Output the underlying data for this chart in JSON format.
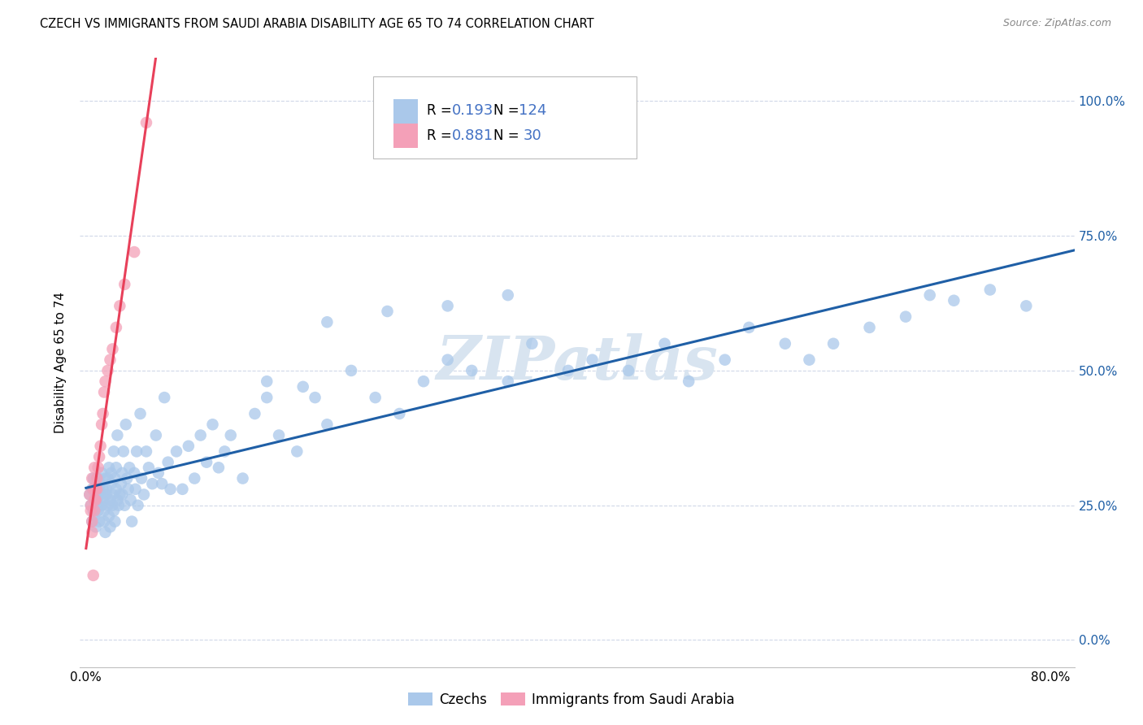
{
  "title": "CZECH VS IMMIGRANTS FROM SAUDI ARABIA DISABILITY AGE 65 TO 74 CORRELATION CHART",
  "source": "Source: ZipAtlas.com",
  "ylabel": "Disability Age 65 to 74",
  "xlim": [
    -0.005,
    0.82
  ],
  "ylim": [
    -0.05,
    1.08
  ],
  "x_ticks": [
    0.0,
    0.1,
    0.2,
    0.3,
    0.4,
    0.5,
    0.6,
    0.7,
    0.8
  ],
  "x_tick_labels": [
    "0.0%",
    "",
    "",
    "",
    "",
    "",
    "",
    "",
    "80.0%"
  ],
  "y_ticks_right": [
    0.0,
    0.25,
    0.5,
    0.75,
    1.0
  ],
  "y_tick_labels_right": [
    "0.0%",
    "25.0%",
    "50.0%",
    "75.0%",
    "100.0%"
  ],
  "czechs_R": 0.193,
  "czechs_N": 124,
  "saudi_R": 0.881,
  "saudi_N": 30,
  "blue_color": "#aac8ea",
  "pink_color": "#f4a0b8",
  "blue_line_color": "#1f5fa6",
  "pink_line_color": "#e8405a",
  "legend_R_color": "#4472c4",
  "background_color": "#ffffff",
  "grid_color": "#d0d8e8",
  "watermark_text": "ZIPatlas",
  "watermark_color": "#d8e4f0",
  "czechs_x": [
    0.003,
    0.004,
    0.005,
    0.005,
    0.006,
    0.006,
    0.007,
    0.007,
    0.008,
    0.008,
    0.009,
    0.009,
    0.01,
    0.01,
    0.01,
    0.01,
    0.011,
    0.011,
    0.012,
    0.012,
    0.013,
    0.013,
    0.014,
    0.014,
    0.015,
    0.015,
    0.016,
    0.016,
    0.017,
    0.017,
    0.018,
    0.018,
    0.019,
    0.019,
    0.02,
    0.02,
    0.021,
    0.021,
    0.022,
    0.022,
    0.023,
    0.023,
    0.024,
    0.024,
    0.025,
    0.025,
    0.026,
    0.026,
    0.027,
    0.028,
    0.029,
    0.03,
    0.03,
    0.031,
    0.032,
    0.033,
    0.034,
    0.035,
    0.036,
    0.037,
    0.038,
    0.04,
    0.041,
    0.042,
    0.043,
    0.045,
    0.046,
    0.048,
    0.05,
    0.052,
    0.055,
    0.058,
    0.06,
    0.063,
    0.065,
    0.068,
    0.07,
    0.075,
    0.08,
    0.085,
    0.09,
    0.095,
    0.1,
    0.105,
    0.11,
    0.115,
    0.12,
    0.13,
    0.14,
    0.15,
    0.16,
    0.175,
    0.19,
    0.2,
    0.22,
    0.24,
    0.26,
    0.28,
    0.3,
    0.32,
    0.35,
    0.37,
    0.4,
    0.42,
    0.45,
    0.48,
    0.5,
    0.53,
    0.55,
    0.58,
    0.6,
    0.62,
    0.65,
    0.68,
    0.7,
    0.72,
    0.75,
    0.78,
    0.2,
    0.25,
    0.15,
    0.18,
    0.3,
    0.35
  ],
  "czechs_y": [
    0.27,
    0.25,
    0.28,
    0.22,
    0.24,
    0.3,
    0.26,
    0.23,
    0.21,
    0.27,
    0.28,
    0.26,
    0.24,
    0.3,
    0.27,
    0.25,
    0.22,
    0.28,
    0.29,
    0.27,
    0.25,
    0.31,
    0.28,
    0.26,
    0.24,
    0.22,
    0.3,
    0.2,
    0.28,
    0.27,
    0.3,
    0.25,
    0.32,
    0.23,
    0.26,
    0.21,
    0.29,
    0.31,
    0.27,
    0.25,
    0.35,
    0.24,
    0.22,
    0.3,
    0.28,
    0.32,
    0.26,
    0.38,
    0.25,
    0.27,
    0.29,
    0.31,
    0.27,
    0.35,
    0.25,
    0.4,
    0.3,
    0.28,
    0.32,
    0.26,
    0.22,
    0.31,
    0.28,
    0.35,
    0.25,
    0.42,
    0.3,
    0.27,
    0.35,
    0.32,
    0.29,
    0.38,
    0.31,
    0.29,
    0.45,
    0.33,
    0.28,
    0.35,
    0.28,
    0.36,
    0.3,
    0.38,
    0.33,
    0.4,
    0.32,
    0.35,
    0.38,
    0.3,
    0.42,
    0.48,
    0.38,
    0.35,
    0.45,
    0.4,
    0.5,
    0.45,
    0.42,
    0.48,
    0.52,
    0.5,
    0.48,
    0.55,
    0.5,
    0.52,
    0.5,
    0.55,
    0.48,
    0.52,
    0.58,
    0.55,
    0.52,
    0.55,
    0.58,
    0.6,
    0.64,
    0.63,
    0.65,
    0.62,
    0.59,
    0.61,
    0.45,
    0.47,
    0.62,
    0.64
  ],
  "saudi_x": [
    0.003,
    0.004,
    0.004,
    0.005,
    0.005,
    0.005,
    0.006,
    0.006,
    0.007,
    0.007,
    0.007,
    0.008,
    0.008,
    0.009,
    0.009,
    0.01,
    0.011,
    0.012,
    0.013,
    0.014,
    0.015,
    0.016,
    0.018,
    0.02,
    0.022,
    0.025,
    0.028,
    0.032,
    0.04,
    0.05
  ],
  "saudi_y": [
    0.27,
    0.25,
    0.24,
    0.3,
    0.22,
    0.2,
    0.28,
    0.12,
    0.32,
    0.26,
    0.24,
    0.28,
    0.26,
    0.3,
    0.28,
    0.32,
    0.34,
    0.36,
    0.4,
    0.42,
    0.46,
    0.48,
    0.5,
    0.52,
    0.54,
    0.58,
    0.62,
    0.66,
    0.72,
    0.96
  ]
}
